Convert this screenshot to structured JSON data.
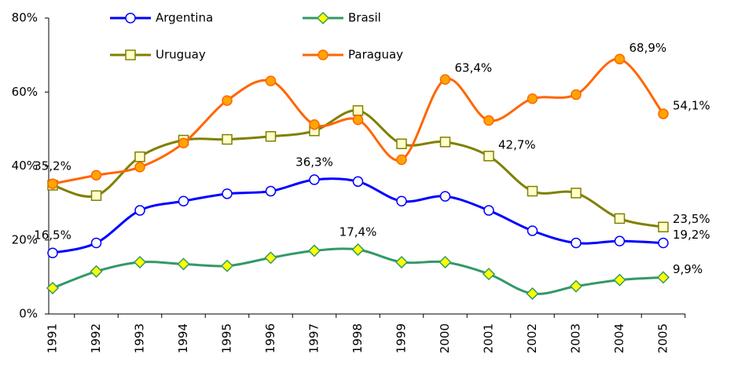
{
  "chart_data": {
    "type": "line",
    "categories": [
      "1991",
      "1992",
      "1993",
      "1994",
      "1995",
      "1996",
      "1997",
      "1998",
      "1999",
      "2000",
      "2001",
      "2002",
      "2003",
      "2004",
      "2005"
    ],
    "ylim": [
      0,
      80
    ],
    "yticks": [
      {
        "value": 0,
        "label": "0%"
      },
      {
        "value": 20,
        "label": "20%"
      },
      {
        "value": 40,
        "label": "40%"
      },
      {
        "value": 60,
        "label": "60%"
      },
      {
        "value": 80,
        "label": "80%"
      }
    ],
    "grid": false,
    "series": [
      {
        "name": "Argentina",
        "color": "#0000ff",
        "marker": "circle",
        "marker_fill": "#ffffff",
        "values": [
          16.5,
          19.2,
          28,
          30.5,
          32.5,
          33.2,
          36.3,
          35.8,
          30.5,
          31.8,
          28,
          22.5,
          19.2,
          19.7,
          19.2
        ],
        "value_labels": [
          "16,5%",
          null,
          null,
          null,
          null,
          null,
          "36,3%",
          null,
          null,
          null,
          null,
          null,
          null,
          null,
          "19,2%"
        ]
      },
      {
        "name": "Brasil",
        "color": "#339966",
        "marker": "diamond",
        "marker_fill": "#ffff00",
        "values": [
          7,
          11.5,
          14,
          13.5,
          13,
          15.2,
          17.1,
          17.4,
          14,
          14,
          10.8,
          5.5,
          7.5,
          9.2,
          9.9
        ],
        "value_labels": [
          null,
          null,
          null,
          null,
          null,
          null,
          null,
          "17,4%",
          null,
          null,
          null,
          null,
          null,
          null,
          "9,9%"
        ]
      },
      {
        "name": "Uruguay",
        "color": "#808000",
        "marker": "square",
        "marker_fill": "#ffffcc",
        "values": [
          34.8,
          32,
          42.5,
          47,
          47.2,
          48,
          49.5,
          55,
          46,
          46.5,
          42.7,
          33.2,
          32.7,
          25.8,
          23.5
        ],
        "value_labels": [
          null,
          null,
          null,
          null,
          null,
          null,
          null,
          null,
          null,
          null,
          "42,7%",
          null,
          null,
          null,
          "23,5%"
        ]
      },
      {
        "name": "Paraguay",
        "color": "#ff6600",
        "marker": "circle",
        "marker_fill": "#ffa500",
        "values": [
          35.2,
          37.5,
          39.7,
          46.2,
          57.7,
          63,
          51.2,
          52.5,
          41.7,
          63.4,
          52.3,
          58.2,
          59.3,
          68.9,
          54.1
        ],
        "value_labels": [
          "35,2%",
          null,
          null,
          null,
          null,
          null,
          null,
          null,
          null,
          "63,4%",
          null,
          null,
          null,
          "68,9%",
          "54,1%"
        ]
      }
    ]
  }
}
